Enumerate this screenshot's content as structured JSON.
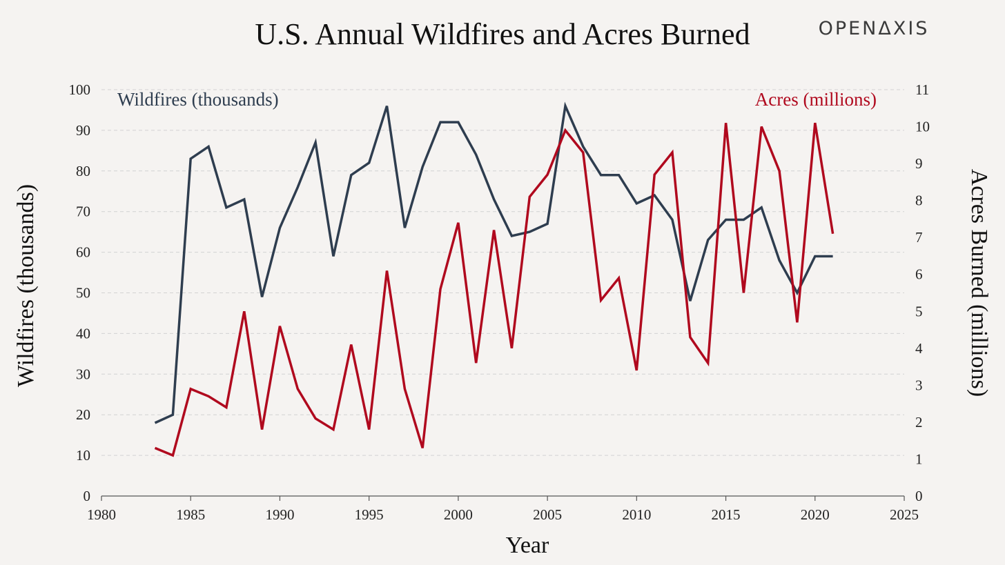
{
  "brand": "OPENΔXIS",
  "colors": {
    "background": "#f5f3f1",
    "wildfires": "#2e3d4f",
    "acres": "#b0091e",
    "grid": "#d2d2d2",
    "axis": "#555555"
  },
  "chart_data": {
    "type": "line",
    "title": "U.S. Annual Wildfires and Acres Burned",
    "xlabel": "Year",
    "ylabel_left": "Wildfires (thousands)",
    "ylabel_right": "Acres Burned (millions)",
    "xlim": [
      1980,
      2025
    ],
    "ylim_left": [
      0,
      100
    ],
    "ylim_right": [
      0,
      11
    ],
    "x_ticks": [
      1980,
      1985,
      1990,
      1995,
      2000,
      2005,
      2010,
      2015,
      2020,
      2025
    ],
    "y_left_ticks": [
      0,
      10,
      20,
      30,
      40,
      50,
      60,
      70,
      80,
      90,
      100
    ],
    "y_right_ticks": [
      0,
      1,
      2,
      3,
      4,
      5,
      6,
      7,
      8,
      9,
      10,
      11
    ],
    "grid": "horizontal dashed",
    "legend_left": "Wildfires (thousands)",
    "legend_right": "Acres (millions)",
    "x": [
      1983,
      1984,
      1985,
      1986,
      1987,
      1988,
      1989,
      1990,
      1991,
      1992,
      1993,
      1994,
      1995,
      1996,
      1997,
      1998,
      1999,
      2000,
      2001,
      2002,
      2003,
      2004,
      2005,
      2006,
      2007,
      2008,
      2009,
      2010,
      2011,
      2012,
      2013,
      2014,
      2015,
      2016,
      2017,
      2018,
      2019,
      2020,
      2021
    ],
    "series": [
      {
        "name": "Wildfires (thousands)",
        "axis": "left",
        "values": [
          18,
          20,
          83,
          86,
          71,
          73,
          49,
          66,
          76,
          87,
          59,
          79,
          82,
          96,
          66,
          81,
          92,
          92,
          84,
          73,
          64,
          65,
          67,
          96,
          86,
          79,
          79,
          72,
          74,
          68,
          48,
          63,
          68,
          68,
          71,
          58,
          50,
          59,
          59
        ]
      },
      {
        "name": "Acres (millions)",
        "axis": "right",
        "values": [
          1.3,
          1.1,
          2.9,
          2.7,
          2.4,
          5.0,
          1.8,
          4.6,
          2.9,
          2.1,
          1.8,
          4.1,
          1.8,
          6.1,
          2.9,
          1.3,
          5.6,
          7.4,
          3.6,
          7.2,
          4.0,
          8.1,
          8.7,
          9.9,
          9.3,
          5.3,
          5.9,
          3.4,
          8.7,
          9.3,
          4.3,
          3.6,
          10.1,
          5.5,
          10.0,
          8.8,
          4.7,
          10.1,
          7.1
        ]
      }
    ]
  }
}
